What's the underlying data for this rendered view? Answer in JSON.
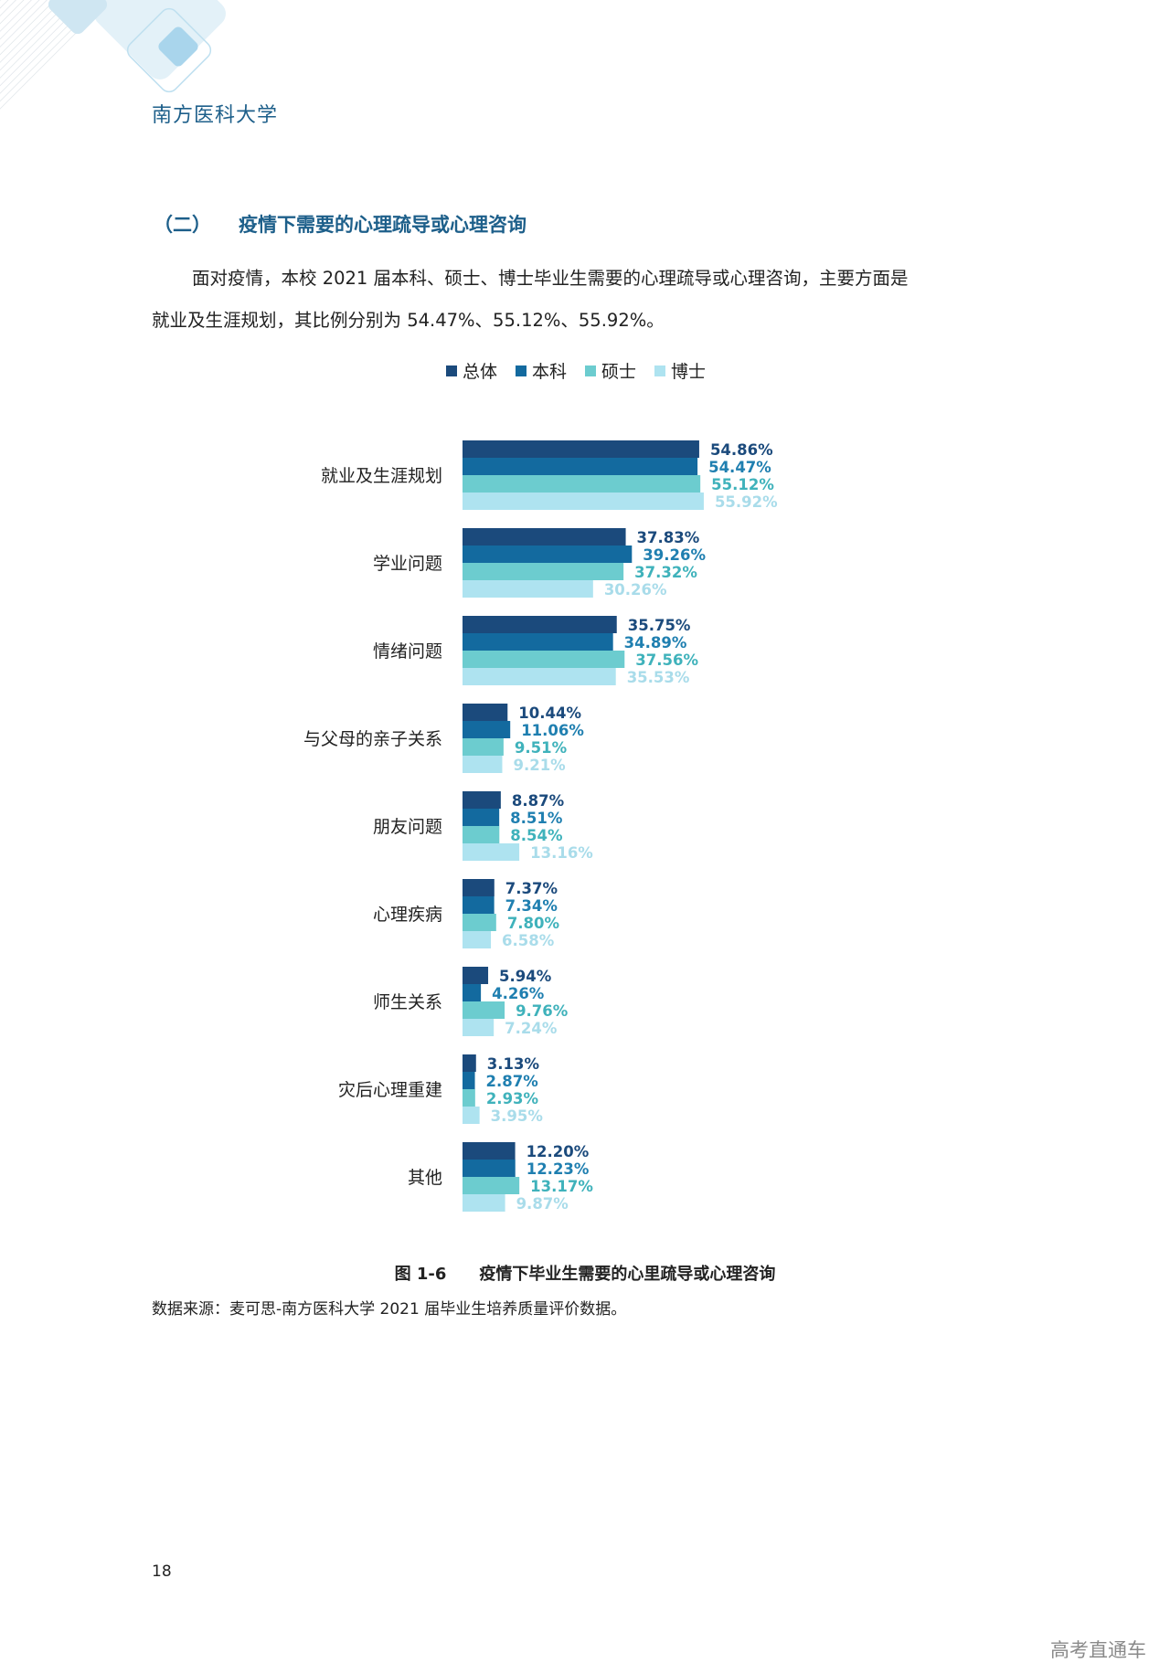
{
  "header": {
    "school": "南方医科大学"
  },
  "section": {
    "number": "（二）",
    "title": "疫情下需要的心理疏导或心理咨询"
  },
  "paragraph": {
    "line1": "面对疫情，本校 2021 届本科、硕士、博士毕业生需要的心理疏导或心理咨询，主要方面是",
    "line2": "就业及生涯规划，其比例分别为 54.47%、55.12%、55.92%。"
  },
  "legend": [
    {
      "label": "总体",
      "color": "#1b4a7c"
    },
    {
      "label": "本科",
      "color": "#136a9f"
    },
    {
      "label": "硕士",
      "color": "#6ccccf"
    },
    {
      "label": "博士",
      "color": "#aee3f0"
    }
  ],
  "chart_data": {
    "type": "bar",
    "orientation": "horizontal",
    "categories": [
      "就业及生涯规划",
      "学业问题",
      "情绪问题",
      "与父母的亲子关系",
      "朋友问题",
      "心理疾病",
      "师生关系",
      "灾后心理重建",
      "其他"
    ],
    "series": [
      {
        "name": "总体",
        "color": "#1b4a7c",
        "label_color": "#1b4a7c",
        "values": [
          54.86,
          37.83,
          35.75,
          10.44,
          8.87,
          7.37,
          5.94,
          3.13,
          12.2
        ],
        "labels": [
          "54.86%",
          "37.83%",
          "35.75%",
          "10.44%",
          "8.87%",
          "7.37%",
          "5.94%",
          "3.13%",
          "12.20%"
        ]
      },
      {
        "name": "本科",
        "color": "#136a9f",
        "label_color": "#1f7fb0",
        "values": [
          54.47,
          39.26,
          34.89,
          11.06,
          8.51,
          7.34,
          4.26,
          2.87,
          12.23
        ],
        "labels": [
          "54.47%",
          "39.26%",
          "34.89%",
          "11.06%",
          "8.51%",
          "7.34%",
          "4.26%",
          "2.87%",
          "12.23%"
        ]
      },
      {
        "name": "硕士",
        "color": "#6ccccf",
        "label_color": "#3fb2bb",
        "values": [
          55.12,
          37.32,
          37.56,
          9.51,
          8.54,
          7.8,
          9.76,
          2.93,
          13.17
        ],
        "labels": [
          "55.12%",
          "37.32%",
          "37.56%",
          "9.51%",
          "8.54%",
          "7.80%",
          "9.76%",
          "2.93%",
          "13.17%"
        ]
      },
      {
        "name": "博士",
        "color": "#aee3f0",
        "label_color": "#a9dcea",
        "values": [
          55.92,
          30.26,
          35.53,
          9.21,
          13.16,
          6.58,
          7.24,
          3.95,
          9.87
        ],
        "labels": [
          "55.92%",
          "30.26%",
          "35.53%",
          "9.21%",
          "13.16%",
          "6.58%",
          "7.24%",
          "3.95%",
          "9.87%"
        ]
      }
    ],
    "unit": "%",
    "xlim": [
      0,
      60
    ],
    "grid": false,
    "legend_position": "top"
  },
  "caption": {
    "figure_no": "图 1-6",
    "title": "疫情下毕业生需要的心里疏导或心理咨询"
  },
  "source": "数据来源：麦可思-南方医科大学 2021 届毕业生培养质量评价数据。",
  "page_number": "18",
  "watermark": "高考直通车"
}
